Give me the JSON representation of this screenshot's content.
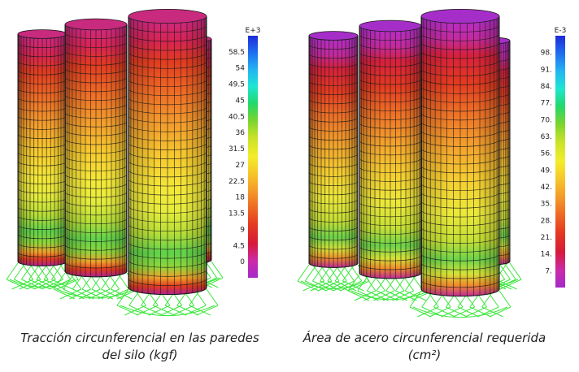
{
  "left_figure": {
    "legend": {
      "exponent": "E+3",
      "ticks": [
        "58.5",
        "54",
        "49.5",
        "45",
        "40.5",
        "36",
        "31.5",
        "27",
        "22.5",
        "18",
        "13.5",
        "9",
        "4.5",
        "0"
      ]
    },
    "caption_lines": [
      "Tracción circunferencial en las paredes",
      "del silo (kgf)"
    ]
  },
  "right_figure": {
    "legend": {
      "exponent": "E-3",
      "ticks": [
        "98.",
        "91.",
        "84.",
        "77.",
        "70.",
        "63.",
        "56.",
        "49.",
        "42.",
        "35.",
        "28.",
        "21.",
        "14.",
        "7."
      ]
    },
    "caption_lines": [
      "Área de acero circunferencial requerida",
      "(cm²)"
    ]
  },
  "colors": {
    "scale": [
      "#1d2bd6",
      "#1e6ef0",
      "#22b4f2",
      "#1ee6d2",
      "#22d86a",
      "#7ad42e",
      "#c8e22a",
      "#f4ec2a",
      "#f6c62a",
      "#f49a2a",
      "#ee6a24",
      "#e43a20",
      "#d61a3a",
      "#cc2aa8",
      "#a42ac8"
    ],
    "silo_grid": "#1a1a1a",
    "supports": "#39e639"
  }
}
